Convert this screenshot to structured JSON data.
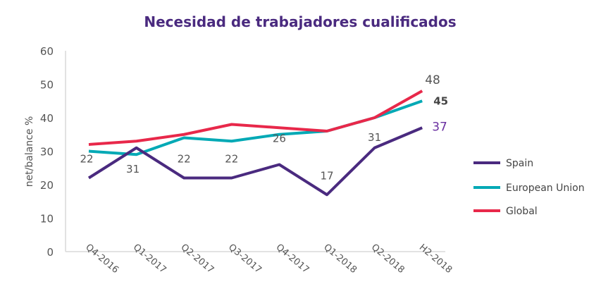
{
  "chart_data": {
    "type": "line",
    "title": "Necesidad de trabajadores cualificados",
    "ylabel": "net/balance %",
    "xlabel": "",
    "ylim": [
      0,
      60
    ],
    "yticks": [
      0,
      10,
      20,
      30,
      40,
      50,
      60
    ],
    "grid": false,
    "legend_position": "right",
    "categories": [
      "Q4-2016",
      "Q1-2017",
      "Q2-2017",
      "Q3-2017",
      "Q4-2017",
      "Q1-2018",
      "Q2-2018",
      "H2-2018"
    ],
    "series": [
      {
        "name": "Spain",
        "color": "#4a2a7f",
        "values": [
          22,
          31,
          22,
          22,
          26,
          17,
          31,
          37
        ],
        "labels": [
          "22",
          "31",
          "22",
          "22",
          "26",
          "17",
          "31",
          "37"
        ]
      },
      {
        "name": "European Union",
        "color": "#00a9b5",
        "values": [
          30,
          29,
          34,
          33,
          35,
          36,
          40,
          45
        ],
        "labels": [
          "",
          "",
          "",
          "",
          "",
          "",
          "",
          "45"
        ]
      },
      {
        "name": "Global",
        "color": "#e8284a",
        "values": [
          32,
          33,
          35,
          38,
          37,
          36,
          40,
          48
        ],
        "labels": [
          "",
          "",
          "",
          "",
          "",
          "",
          "",
          "48"
        ]
      }
    ]
  }
}
